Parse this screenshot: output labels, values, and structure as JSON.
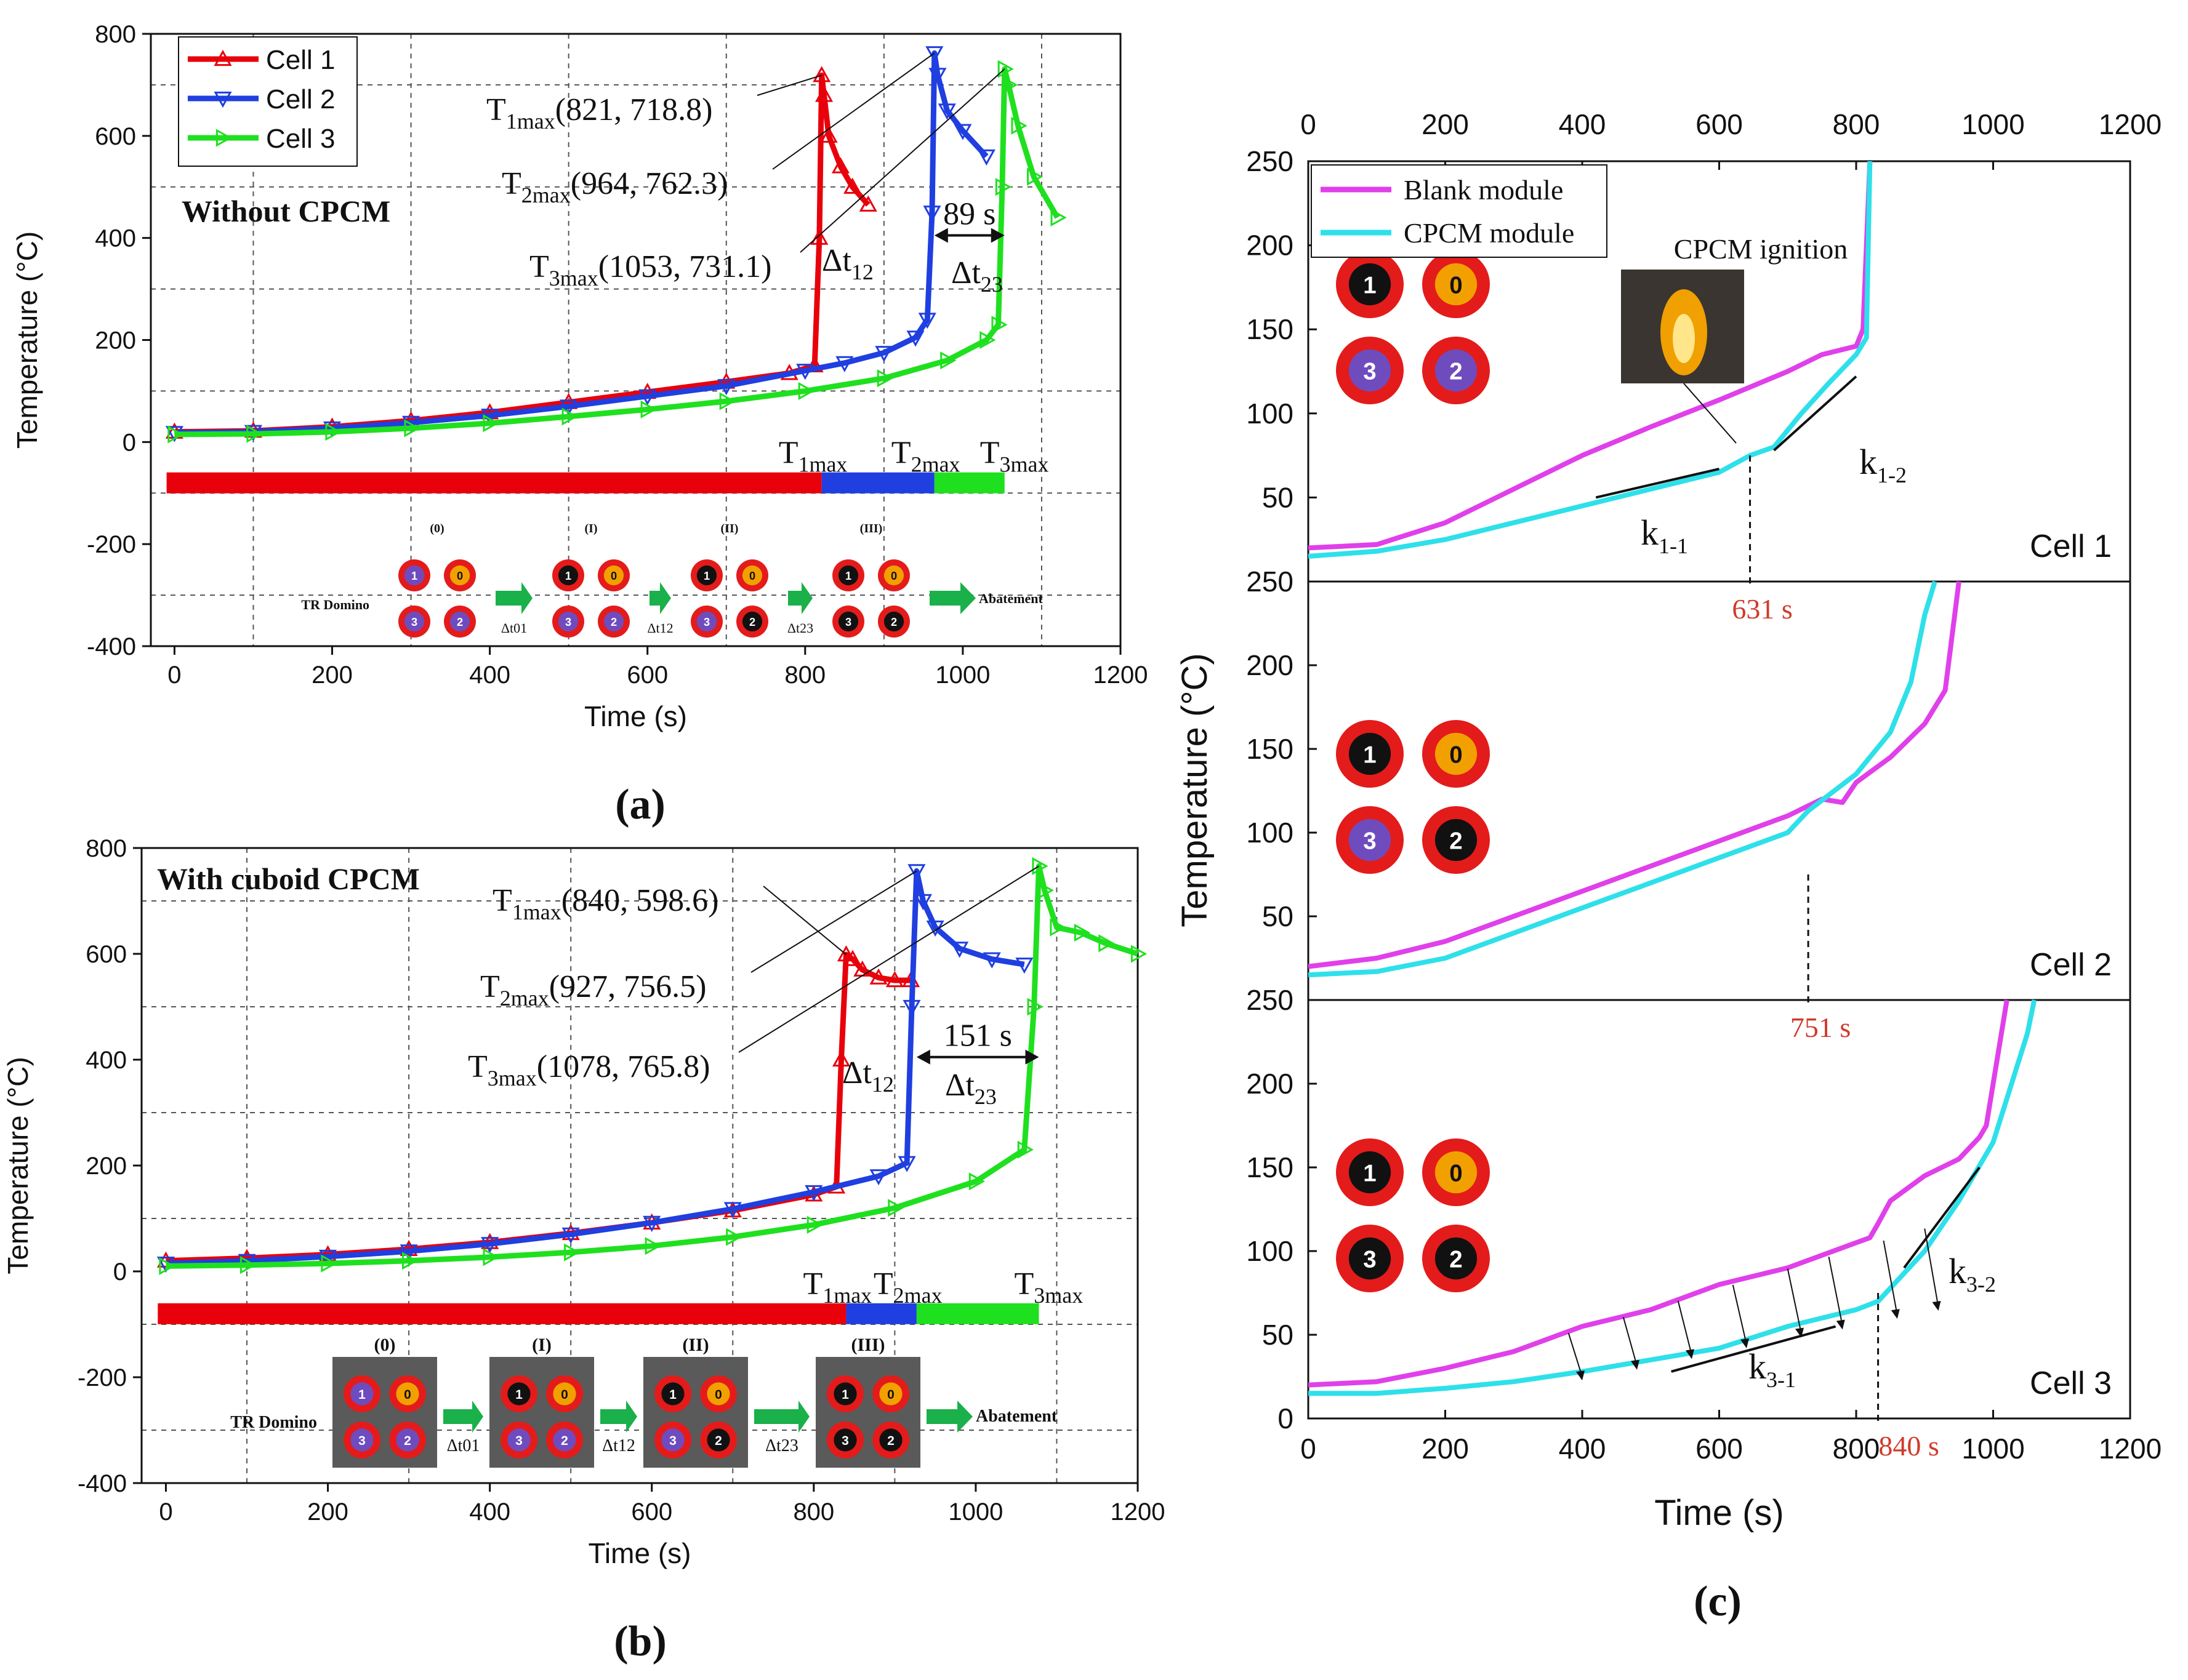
{
  "colors": {
    "cell1": "#e8000b",
    "cell2": "#1f3fe0",
    "cell3": "#1fe01f",
    "blank": "#e040ea",
    "cpcm": "#2ee0ea",
    "marker_red": "#d22222",
    "ignition_red": "#d03a2a",
    "frame_gray": "#5a5a5a",
    "mark_red": "#e41b1b",
    "mark_orange": "#f2a000",
    "mark_purple": "#6f4cbe",
    "mark_black": "#111111",
    "arrow_green": "#1ab04a"
  },
  "panel_labels": {
    "a": "(a)",
    "b": "(b)",
    "c": "(c)"
  },
  "chart_data": [
    {
      "id": "a",
      "type": "line",
      "title": "",
      "xlabel": "Time (s)",
      "ylabel": "Temperature (°C)",
      "xlim": [
        -30,
        1200
      ],
      "ylim": [
        -400,
        800
      ],
      "xticks": [
        "0",
        "200",
        "400",
        "600",
        "800",
        "1000",
        "1200"
      ],
      "yticks": [
        "-400",
        "-200",
        "0",
        "200",
        "400",
        "600",
        "800"
      ],
      "grid": "dashed",
      "legend": "top-left",
      "annotation_label": "Without CPCM",
      "series": [
        {
          "name": "Cell 1",
          "color_key": "cell1",
          "marker": "triangle-up",
          "x": [
            0,
            100,
            200,
            300,
            400,
            500,
            600,
            700,
            780,
            812,
            818,
            821,
            824,
            830,
            845,
            860,
            880
          ],
          "y": [
            20,
            22,
            30,
            42,
            58,
            78,
            98,
            118,
            135,
            150,
            400,
            718.8,
            680,
            600,
            540,
            500,
            465
          ]
        },
        {
          "name": "Cell 2",
          "color_key": "cell2",
          "marker": "triangle-down",
          "x": [
            0,
            100,
            200,
            300,
            400,
            500,
            600,
            700,
            800,
            850,
            900,
            940,
            955,
            961,
            964,
            968,
            980,
            1000,
            1030
          ],
          "y": [
            18,
            20,
            27,
            38,
            52,
            70,
            90,
            110,
            140,
            155,
            175,
            205,
            240,
            450,
            762.3,
            720,
            650,
            610,
            560
          ]
        },
        {
          "name": "Cell 3",
          "color_key": "cell3",
          "marker": "triangle-right",
          "x": [
            0,
            100,
            200,
            300,
            400,
            500,
            600,
            700,
            800,
            900,
            980,
            1030,
            1045,
            1050,
            1053,
            1058,
            1070,
            1090,
            1120
          ],
          "y": [
            15,
            16,
            20,
            27,
            37,
            50,
            64,
            80,
            100,
            125,
            160,
            200,
            230,
            500,
            731.1,
            700,
            620,
            520,
            440
          ]
        }
      ],
      "timeline": {
        "y": -80,
        "segments": [
          {
            "from": -10,
            "to": 821,
            "color_key": "cell1"
          },
          {
            "from": 821,
            "to": 964,
            "color_key": "cell2"
          },
          {
            "from": 964,
            "to": 1053,
            "color_key": "cell3"
          }
        ],
        "tmax_labels": [
          "T1max",
          "T2max",
          "T3max"
        ]
      },
      "peaks": [
        {
          "sub": "1max",
          "text": "T1max",
          "coords": "(821, 718.8)"
        },
        {
          "sub": "2max",
          "text": "T2max",
          "coords": "(964, 762.3)"
        },
        {
          "sub": "3max",
          "text": "T3max",
          "coords": "(1053, 731.1)"
        }
      ],
      "intervals": {
        "dt12": "Δt12",
        "dt23": "Δt23",
        "dt23_value": "89 s"
      }
    },
    {
      "id": "b",
      "type": "line",
      "title": "",
      "xlabel": "Time (s)",
      "ylabel": "Temperature (°C)",
      "xlim": [
        -30,
        1200
      ],
      "ylim": [
        -400,
        800
      ],
      "xticks": [
        "0",
        "200",
        "400",
        "600",
        "800",
        "1000",
        "1200"
      ],
      "yticks": [
        "-400",
        "-200",
        "0",
        "200",
        "400",
        "600",
        "800"
      ],
      "grid": "dashed",
      "legend": "none",
      "annotation_label": "With cuboid CPCM",
      "series": [
        {
          "name": "Cell 1",
          "color_key": "cell1",
          "marker": "triangle-up",
          "x": [
            0,
            100,
            200,
            300,
            400,
            500,
            600,
            700,
            800,
            828,
            834,
            840,
            848,
            860,
            880,
            900,
            920
          ],
          "y": [
            20,
            25,
            32,
            42,
            55,
            72,
            92,
            115,
            145,
            160,
            400,
            598.6,
            590,
            570,
            555,
            550,
            550
          ]
        },
        {
          "name": "Cell 2",
          "color_key": "cell2",
          "marker": "triangle-down",
          "x": [
            0,
            100,
            200,
            300,
            400,
            500,
            600,
            700,
            800,
            880,
            915,
            921,
            927,
            935,
            950,
            980,
            1020,
            1060
          ],
          "y": [
            15,
            20,
            28,
            38,
            52,
            70,
            92,
            118,
            150,
            180,
            205,
            500,
            756.5,
            700,
            650,
            610,
            590,
            580
          ]
        },
        {
          "name": "Cell 3",
          "color_key": "cell3",
          "marker": "triangle-right",
          "x": [
            0,
            100,
            200,
            300,
            400,
            500,
            600,
            700,
            800,
            900,
            1000,
            1060,
            1072,
            1078,
            1085,
            1100,
            1130,
            1160,
            1200
          ],
          "y": [
            10,
            12,
            15,
            20,
            27,
            36,
            48,
            65,
            88,
            120,
            170,
            230,
            500,
            765.8,
            720,
            650,
            640,
            620,
            600
          ]
        }
      ],
      "timeline": {
        "y": -80,
        "segments": [
          {
            "from": -10,
            "to": 840,
            "color_key": "cell1"
          },
          {
            "from": 840,
            "to": 927,
            "color_key": "cell2"
          },
          {
            "from": 927,
            "to": 1078,
            "color_key": "cell3"
          }
        ],
        "tmax_labels": [
          "T1max",
          "T2max",
          "T3max"
        ]
      },
      "peaks": [
        {
          "sub": "1max",
          "text": "T1max",
          "coords": "(840, 598.6)"
        },
        {
          "sub": "2max",
          "text": "T2max",
          "coords": "(927, 756.5)"
        },
        {
          "sub": "3max",
          "text": "T3max",
          "coords": "(1078, 765.8)"
        }
      ],
      "intervals": {
        "dt12": "Δt12",
        "dt23": "Δt23",
        "dt23_value": "151 s"
      }
    },
    {
      "id": "c",
      "type": "line",
      "title": "",
      "xlabel": "Time (s)",
      "ylabel": "Temperature (°C)",
      "xlim": [
        0,
        1200
      ],
      "ylim": [
        0,
        250
      ],
      "xticks": [
        "0",
        "200",
        "400",
        "600",
        "800",
        "1000",
        "1200"
      ],
      "yticks_sub": [
        "50",
        "100",
        "150",
        "200",
        "250"
      ],
      "yticks_bottom": [
        "0",
        "50",
        "100",
        "150",
        "200",
        "250"
      ],
      "legend": "top-left",
      "legend_entries": [
        "Blank module",
        "CPCM module"
      ],
      "ignition_label": "CPCM ignition",
      "subplots": [
        {
          "cell": "Cell 1",
          "marker_time": "631 s",
          "marker_x": 645,
          "slopes": [
            "k1-1",
            "k1-2"
          ],
          "series": [
            {
              "name": "Blank module",
              "color_key": "blank",
              "x": [
                0,
                100,
                200,
                300,
                400,
                500,
                600,
                700,
                750,
                800,
                810,
                815,
                820
              ],
              "y": [
                20,
                22,
                35,
                55,
                75,
                92,
                108,
                125,
                135,
                140,
                150,
                200,
                250
              ]
            },
            {
              "name": "CPCM module",
              "color_key": "cpcm",
              "x": [
                0,
                100,
                200,
                300,
                400,
                500,
                600,
                645,
                680,
                720,
                760,
                800,
                815,
                820
              ],
              "y": [
                15,
                18,
                25,
                35,
                45,
                55,
                65,
                75,
                80,
                100,
                118,
                135,
                145,
                250
              ]
            }
          ]
        },
        {
          "cell": "Cell 2",
          "marker_time": "751 s",
          "marker_x": 730,
          "slopes": [],
          "series": [
            {
              "name": "Blank module",
              "color_key": "blank",
              "x": [
                0,
                100,
                200,
                300,
                400,
                500,
                600,
                700,
                750,
                780,
                800,
                850,
                900,
                930,
                950
              ],
              "y": [
                20,
                25,
                35,
                50,
                65,
                80,
                95,
                110,
                120,
                118,
                130,
                145,
                165,
                185,
                250
              ]
            },
            {
              "name": "CPCM module",
              "color_key": "cpcm",
              "x": [
                0,
                100,
                200,
                300,
                400,
                500,
                600,
                700,
                730,
                800,
                850,
                880,
                900,
                915
              ],
              "y": [
                15,
                17,
                25,
                40,
                55,
                70,
                85,
                100,
                113,
                135,
                160,
                190,
                230,
                250
              ]
            }
          ]
        },
        {
          "cell": "Cell 3",
          "marker_time": "840 s",
          "marker_x": 832,
          "slopes": [
            "k3-1",
            "k3-2"
          ],
          "series": [
            {
              "name": "Blank module",
              "color_key": "blank",
              "x": [
                0,
                100,
                200,
                300,
                400,
                500,
                600,
                700,
                800,
                820,
                830,
                850,
                900,
                950,
                980,
                990,
                1000,
                1020
              ],
              "y": [
                20,
                22,
                30,
                40,
                55,
                65,
                80,
                90,
                105,
                108,
                115,
                130,
                145,
                155,
                168,
                175,
                200,
                250
              ]
            },
            {
              "name": "CPCM module",
              "color_key": "cpcm",
              "x": [
                0,
                100,
                200,
                300,
                400,
                500,
                600,
                700,
                800,
                832,
                900,
                950,
                1000,
                1050,
                1060
              ],
              "y": [
                15,
                15,
                18,
                22,
                28,
                35,
                42,
                55,
                65,
                70,
                100,
                130,
                165,
                230,
                250
              ]
            }
          ]
        }
      ]
    }
  ],
  "schematics": {
    "a": {
      "stages": [
        "(0)",
        "(I)",
        "(II)",
        "(III)"
      ],
      "labels": [
        "TR Domino",
        "Δt01",
        "Δt12",
        "Δt23",
        "Abatement"
      ],
      "cells": [
        [
          [
            "1",
            "purple"
          ],
          [
            "0",
            "orange"
          ],
          [
            "3",
            "purple"
          ],
          [
            "2",
            "purple"
          ]
        ],
        [
          [
            "1",
            "black"
          ],
          [
            "0",
            "orange"
          ],
          [
            "3",
            "purple"
          ],
          [
            "2",
            "purple"
          ]
        ],
        [
          [
            "1",
            "black"
          ],
          [
            "0",
            "orange"
          ],
          [
            "3",
            "purple"
          ],
          [
            "2",
            "black"
          ]
        ],
        [
          [
            "1",
            "black"
          ],
          [
            "0",
            "orange"
          ],
          [
            "3",
            "black"
          ],
          [
            "2",
            "black"
          ]
        ]
      ]
    },
    "b": {
      "stages": [
        "(0)",
        "(I)",
        "(II)",
        "(III)"
      ],
      "labels": [
        "TR Domino",
        "Δt01",
        "Δt12",
        "Δt23",
        "Abatement"
      ],
      "cells": [
        [
          [
            "1",
            "purple"
          ],
          [
            "0",
            "orange"
          ],
          [
            "3",
            "purple"
          ],
          [
            "2",
            "purple"
          ]
        ],
        [
          [
            "1",
            "black"
          ],
          [
            "0",
            "orange"
          ],
          [
            "3",
            "purple"
          ],
          [
            "2",
            "purple"
          ]
        ],
        [
          [
            "1",
            "black"
          ],
          [
            "0",
            "orange"
          ],
          [
            "3",
            "purple"
          ],
          [
            "2",
            "black"
          ]
        ],
        [
          [
            "1",
            "black"
          ],
          [
            "0",
            "orange"
          ],
          [
            "3",
            "black"
          ],
          [
            "2",
            "black"
          ]
        ]
      ]
    },
    "c": [
      [
        [
          "1",
          "black"
        ],
        [
          "0",
          "orange"
        ],
        [
          "3",
          "purple"
        ],
        [
          "2",
          "purple"
        ]
      ],
      [
        [
          "1",
          "black"
        ],
        [
          "0",
          "orange"
        ],
        [
          "3",
          "purple"
        ],
        [
          "2",
          "black"
        ]
      ],
      [
        [
          "1",
          "black"
        ],
        [
          "0",
          "orange"
        ],
        [
          "3",
          "black"
        ],
        [
          "2",
          "black"
        ]
      ]
    ]
  }
}
